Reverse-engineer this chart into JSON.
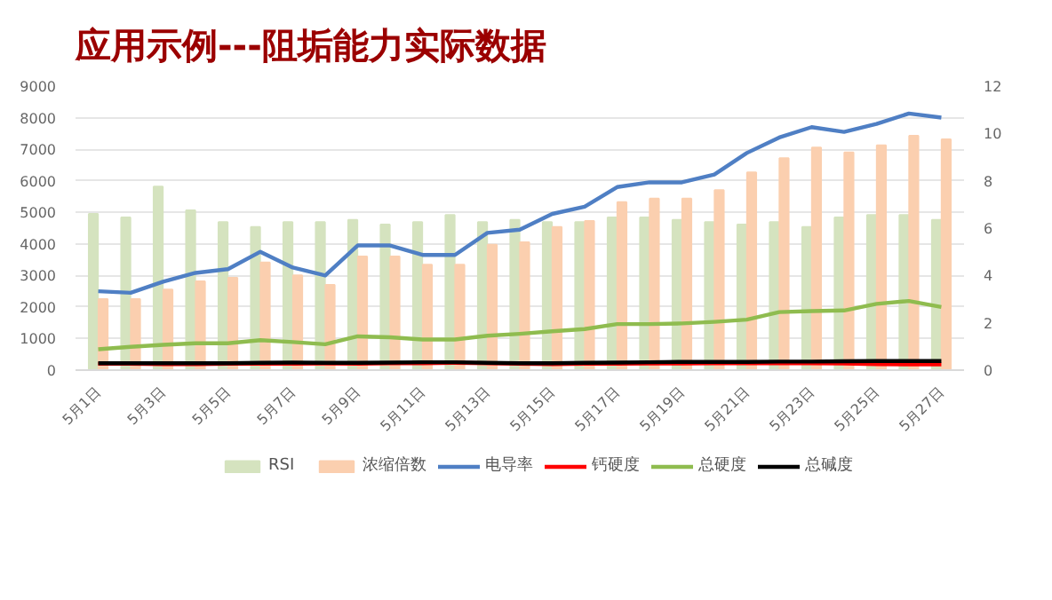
{
  "chart_data": {
    "type": "bar",
    "title": "应用示例---阻垢能力实际数据",
    "categories": [
      "5月1日",
      null,
      "5月3日",
      null,
      "5月5日",
      null,
      "5月7日",
      null,
      "5月9日",
      null,
      "5月11日",
      null,
      "5月13日",
      null,
      "5月15日",
      null,
      "5月17日",
      null,
      "5月19日",
      null,
      "5月21日",
      null,
      "5月23日",
      null,
      "5月25日",
      null,
      "5月27日"
    ],
    "series": [
      {
        "name": "RSI",
        "type": "bar",
        "axis": "y2",
        "color": "#d5e3bf",
        "values": [
          6.6,
          6.45,
          7.75,
          6.75,
          6.25,
          6.05,
          6.25,
          6.25,
          6.35,
          6.15,
          6.25,
          6.55,
          6.25,
          6.35,
          6.25,
          6.25,
          6.45,
          6.45,
          6.35,
          6.25,
          6.15,
          6.25,
          6.05,
          6.45,
          6.55,
          6.55,
          6.35
        ]
      },
      {
        "name": "浓缩倍数",
        "type": "bar",
        "axis": "y2",
        "color": "#fbcfaf",
        "values": [
          3.0,
          3.0,
          3.4,
          3.75,
          3.9,
          4.55,
          4.0,
          3.6,
          4.8,
          4.8,
          4.45,
          4.45,
          5.3,
          5.4,
          6.05,
          6.3,
          7.1,
          7.25,
          7.25,
          7.6,
          8.35,
          8.95,
          9.4,
          9.2,
          9.5,
          9.9,
          9.75
        ]
      },
      {
        "name": "电导率",
        "type": "line",
        "color": "#4f7fc4",
        "values": [
          2500,
          2450,
          2800,
          3080,
          3200,
          3750,
          3250,
          3000,
          3950,
          3950,
          3650,
          3650,
          4350,
          4450,
          4950,
          5180,
          5800,
          5950,
          5950,
          6200,
          6880,
          7370,
          7700,
          7550,
          7800,
          8130,
          8000
        ]
      },
      {
        "name": "钙硬度",
        "type": "line",
        "color": "#ff0000",
        "values": [
          200,
          200,
          190,
          190,
          200,
          200,
          200,
          210,
          200,
          220,
          220,
          230,
          220,
          200,
          190,
          200,
          200,
          210,
          210,
          220,
          220,
          220,
          220,
          210,
          190,
          180,
          180
        ]
      },
      {
        "name": "总硬度",
        "type": "line",
        "color": "#8fbc4f",
        "values": [
          660,
          740,
          800,
          850,
          850,
          950,
          890,
          820,
          1070,
          1040,
          970,
          970,
          1090,
          1150,
          1230,
          1300,
          1460,
          1460,
          1480,
          1530,
          1600,
          1840,
          1870,
          1890,
          2100,
          2190,
          2000
        ]
      },
      {
        "name": "总碱度",
        "type": "line",
        "color": "#000000",
        "values": [
          220,
          220,
          220,
          220,
          220,
          230,
          240,
          230,
          230,
          240,
          250,
          250,
          230,
          220,
          220,
          230,
          240,
          250,
          260,
          260,
          260,
          270,
          270,
          280,
          290,
          290,
          290
        ]
      }
    ],
    "ylim": [
      0,
      9000
    ],
    "yticks": [
      0,
      1000,
      2000,
      3000,
      4000,
      5000,
      6000,
      7000,
      8000,
      9000
    ],
    "y2lim": [
      0,
      12
    ],
    "y2ticks": [
      0,
      2,
      4,
      6,
      8,
      10,
      12
    ],
    "grid": "y",
    "legend": "bottom"
  }
}
